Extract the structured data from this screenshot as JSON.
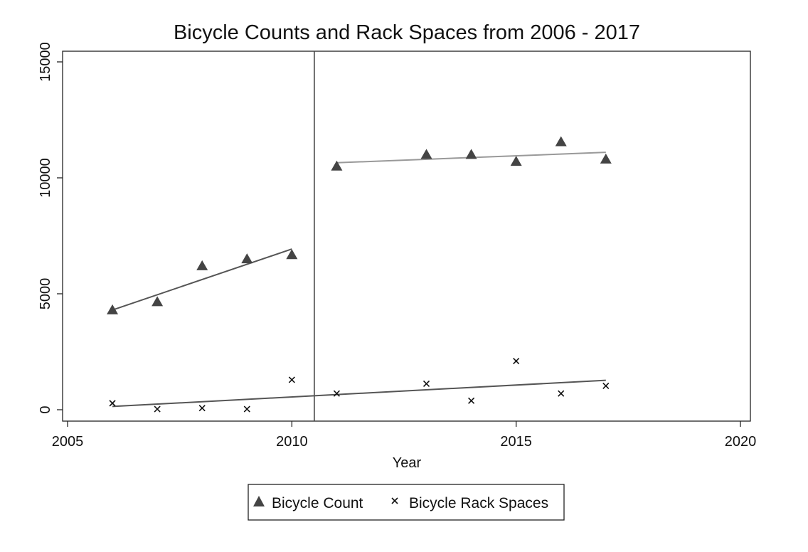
{
  "chart_data": {
    "type": "scatter",
    "title": "Bicycle Counts and Rack Spaces from 2006 - 2017",
    "xlabel": "Year",
    "ylabel": "",
    "xlim": [
      2005,
      2020
    ],
    "ylim": [
      0,
      15000
    ],
    "x_ticks": [
      "2005",
      "2010",
      "2015",
      "2020"
    ],
    "y_ticks": [
      "0",
      "5000",
      "10000",
      "15000"
    ],
    "grid": false,
    "legend_position": "bottom",
    "cutoff_line_x": 2010.5,
    "series": [
      {
        "name": "Bicycle Count",
        "marker": "triangle",
        "color": "#444444",
        "points": [
          {
            "x": 2006,
            "y": 4300
          },
          {
            "x": 2007,
            "y": 4650
          },
          {
            "x": 2008,
            "y": 6200
          },
          {
            "x": 2009,
            "y": 6500
          },
          {
            "x": 2010,
            "y": 6680
          },
          {
            "x": 2011,
            "y": 10500
          },
          {
            "x": 2013,
            "y": 11000
          },
          {
            "x": 2014,
            "y": 11000
          },
          {
            "x": 2015,
            "y": 10700
          },
          {
            "x": 2016,
            "y": 11550
          },
          {
            "x": 2017,
            "y": 10800
          }
        ]
      },
      {
        "name": "Bicycle Rack Spaces",
        "marker": "x",
        "color": "#111111",
        "points": [
          {
            "x": 2006,
            "y": 280
          },
          {
            "x": 2007,
            "y": 30
          },
          {
            "x": 2008,
            "y": 70
          },
          {
            "x": 2009,
            "y": 30
          },
          {
            "x": 2010,
            "y": 1290
          },
          {
            "x": 2011,
            "y": 700
          },
          {
            "x": 2013,
            "y": 1120
          },
          {
            "x": 2014,
            "y": 390
          },
          {
            "x": 2015,
            "y": 2100
          },
          {
            "x": 2016,
            "y": 700
          },
          {
            "x": 2017,
            "y": 1030
          }
        ]
      }
    ],
    "fit_lines": [
      {
        "color": "#555555",
        "from": {
          "x": 2006,
          "y": 4300
        },
        "to": {
          "x": 2010,
          "y": 6930
        }
      },
      {
        "color": "#999999",
        "from": {
          "x": 2011,
          "y": 10650
        },
        "to": {
          "x": 2017,
          "y": 11100
        }
      },
      {
        "color": "#555555",
        "from": {
          "x": 2006,
          "y": 140
        },
        "to": {
          "x": 2017,
          "y": 1270
        }
      }
    ]
  }
}
